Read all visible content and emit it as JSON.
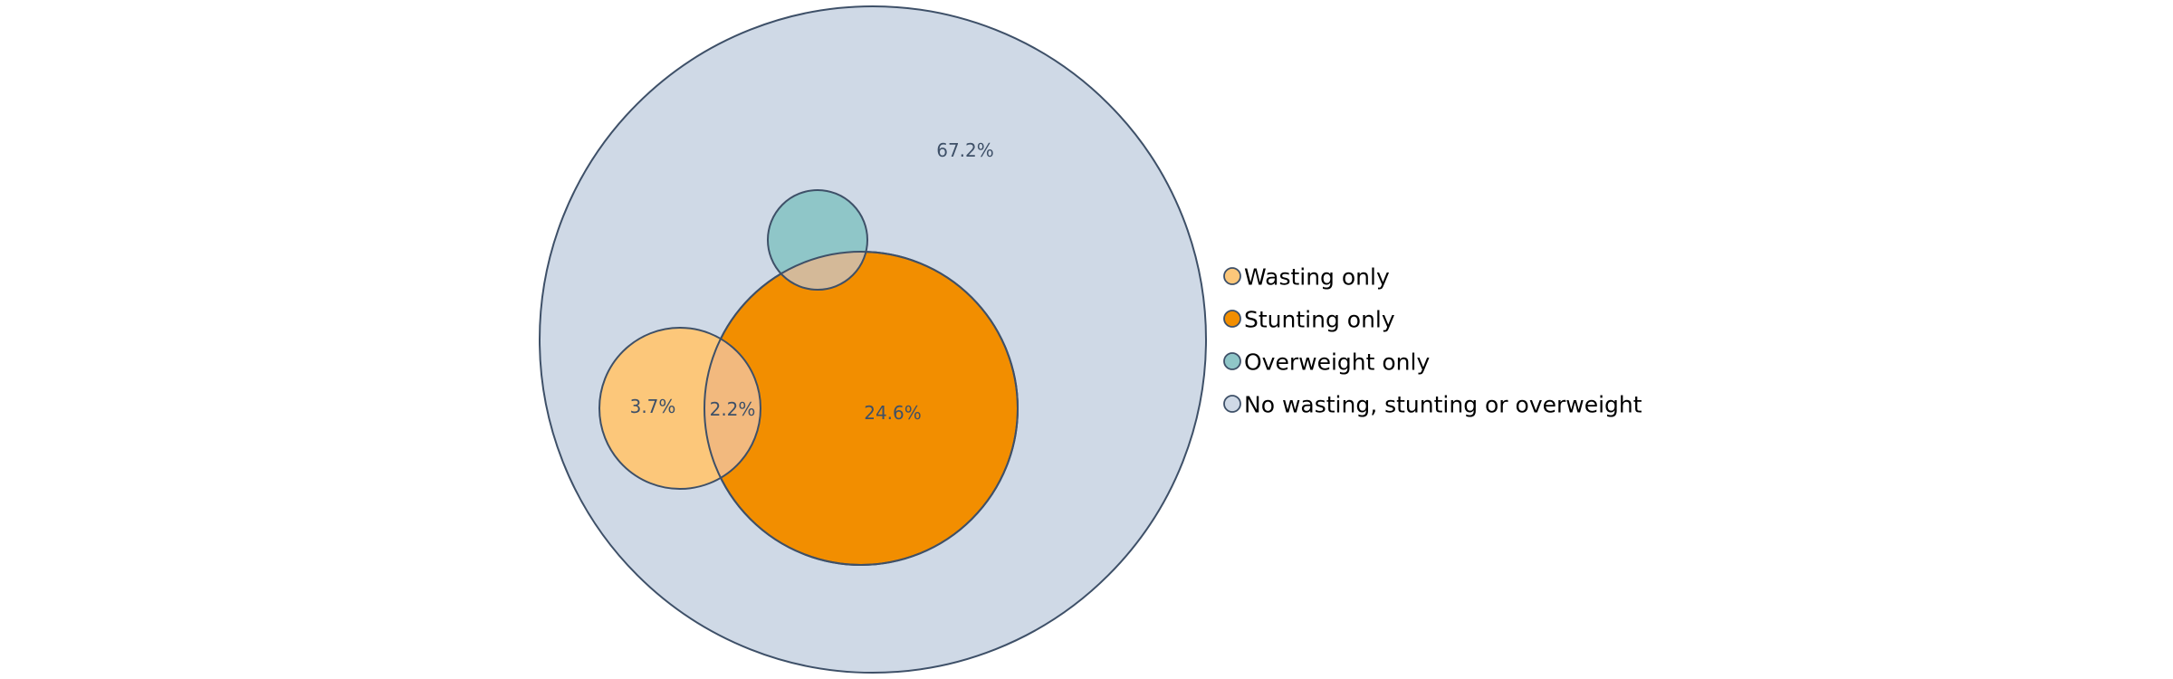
{
  "chart_data": {
    "type": "venn",
    "sets": [
      {
        "key": "total",
        "name": "No wasting, stunting or overweight",
        "color": "#cfd9e6"
      },
      {
        "key": "stunting",
        "name": "Stunting only",
        "color": "#f28e00"
      },
      {
        "key": "wasting",
        "name": "Wasting only",
        "color": "#fcc77a"
      },
      {
        "key": "overweight",
        "name": "Overweight only",
        "color": "#8fc6c8"
      }
    ],
    "overlap_colors": {
      "wasting_stunting": "#f2b97e",
      "overweight_stunting": "#d4b998"
    },
    "edge_color": "#3e5068",
    "label_color": "#3e5068",
    "region_labels": [
      {
        "key": "none",
        "text": "67.2%"
      },
      {
        "key": "stunting",
        "text": "24.6%"
      },
      {
        "key": "wasting",
        "text": "3.7%"
      },
      {
        "key": "wasting_stunting",
        "text": "2.2%"
      }
    ],
    "legend": [
      {
        "key": "wasting",
        "label": "Wasting only",
        "color": "#fcc77a"
      },
      {
        "key": "stunting",
        "label": "Stunting only",
        "color": "#f28e00"
      },
      {
        "key": "overweight",
        "label": "Overweight only",
        "color": "#8fc6c8"
      },
      {
        "key": "none",
        "label": "No wasting, stunting or overweight",
        "color": "#cfd9e6"
      }
    ],
    "legend_position": "right"
  }
}
